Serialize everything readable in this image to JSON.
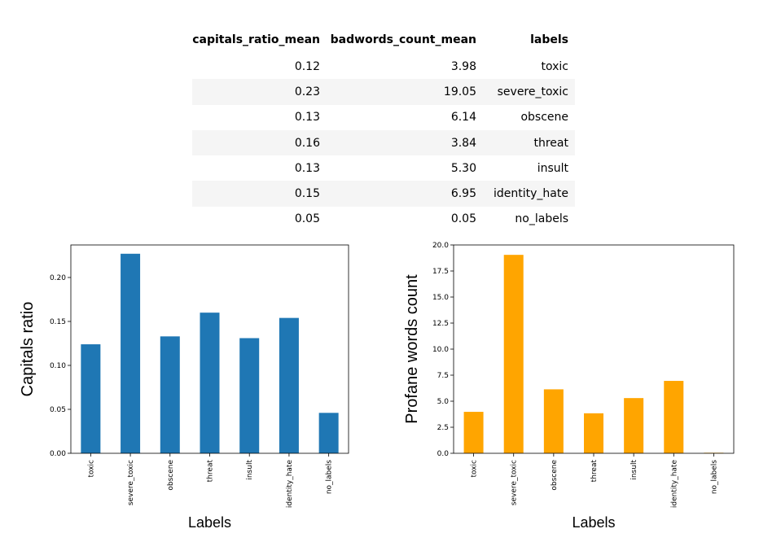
{
  "table": {
    "columns": [
      "capitals_ratio_mean",
      "badwords_count_mean",
      "labels"
    ],
    "rows": [
      [
        "0.12",
        "3.98",
        "toxic"
      ],
      [
        "0.23",
        "19.05",
        "severe_toxic"
      ],
      [
        "0.13",
        "6.14",
        "obscene"
      ],
      [
        "0.16",
        "3.84",
        "threat"
      ],
      [
        "0.13",
        "5.30",
        "insult"
      ],
      [
        "0.15",
        "6.95",
        "identity_hate"
      ],
      [
        "0.05",
        "0.05",
        "no_labels"
      ]
    ]
  },
  "chart_data": [
    {
      "type": "bar",
      "categories": [
        "toxic",
        "severe_toxic",
        "obscene",
        "threat",
        "insult",
        "identity_hate",
        "no_labels"
      ],
      "values": [
        0.124,
        0.227,
        0.133,
        0.16,
        0.131,
        0.154,
        0.046
      ],
      "xlabel": "Labels",
      "ylabel": "Capitals ratio",
      "ylim": [
        0,
        0.237
      ],
      "yticks": [
        "0.00",
        "0.05",
        "0.10",
        "0.15",
        "0.20"
      ],
      "ytick_values": [
        0,
        0.05,
        0.1,
        0.15,
        0.2
      ],
      "color": "#1f77b4",
      "grid": false
    },
    {
      "type": "bar",
      "categories": [
        "toxic",
        "severe_toxic",
        "obscene",
        "threat",
        "insult",
        "identity_hate",
        "no_labels"
      ],
      "values": [
        3.98,
        19.05,
        6.14,
        3.84,
        5.3,
        6.95,
        0.05
      ],
      "xlabel": "Labels",
      "ylabel": "Profane words count",
      "ylim": [
        0,
        20
      ],
      "yticks": [
        "0.0",
        "2.5",
        "5.0",
        "7.5",
        "10.0",
        "12.5",
        "15.0",
        "17.5",
        "20.0"
      ],
      "ytick_values": [
        0,
        2.5,
        5,
        7.5,
        10,
        12.5,
        15,
        17.5,
        20
      ],
      "color": "#ffa500",
      "grid": false
    }
  ]
}
